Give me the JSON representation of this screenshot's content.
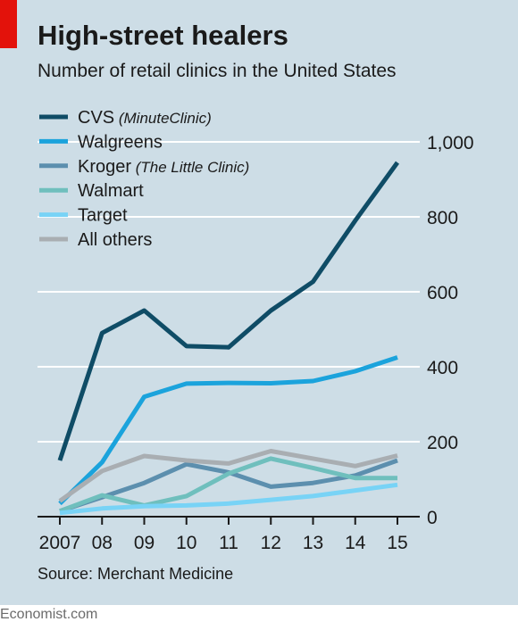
{
  "header": {
    "title": "High-street healers",
    "subtitle": "Number of retail clinics in the United States"
  },
  "footer": {
    "source": "Source: Merchant Medicine",
    "brand": "Economist.com"
  },
  "colors": {
    "background": "#cddde6",
    "accent": "#e3120b",
    "grid": "#ffffff",
    "axis": "#1a1a1a"
  },
  "chart_data": {
    "type": "line",
    "title": "High-street healers",
    "subtitle": "Number of retail clinics in the United States",
    "xlabel": "",
    "ylabel": "",
    "x": [
      2007,
      2008,
      2009,
      2010,
      2011,
      2012,
      2013,
      2014,
      2015
    ],
    "x_tick_labels": [
      "2007",
      "08",
      "09",
      "10",
      "11",
      "12",
      "13",
      "14",
      "15"
    ],
    "ylim": [
      0,
      1000
    ],
    "y_ticks": [
      0,
      200,
      400,
      600,
      800,
      1000
    ],
    "y_tick_labels": [
      "0",
      "200",
      "400",
      "600",
      "800",
      "1,000"
    ],
    "y_axis_side": "right",
    "grid": true,
    "legend_position": "top-left",
    "series": [
      {
        "name": "CVS",
        "note": "(MinuteClinic)",
        "color": "#0f4c66",
        "values": [
          150,
          490,
          550,
          455,
          452,
          550,
          627,
          790,
          945
        ]
      },
      {
        "name": "Walgreens",
        "note": "",
        "color": "#1ba3dc",
        "values": [
          35,
          145,
          320,
          355,
          357,
          356,
          362,
          388,
          425
        ]
      },
      {
        "name": "Kroger",
        "note": "(The Little Clinic)",
        "color": "#5c8fae",
        "values": [
          15,
          52,
          90,
          140,
          118,
          80,
          90,
          110,
          150
        ]
      },
      {
        "name": "Walmart",
        "note": "",
        "color": "#6fbfbd",
        "values": [
          15,
          57,
          30,
          55,
          115,
          155,
          130,
          103,
          103
        ]
      },
      {
        "name": "Target",
        "note": "",
        "color": "#78d3f6",
        "values": [
          10,
          22,
          28,
          30,
          35,
          45,
          55,
          70,
          85
        ]
      },
      {
        "name": "All others",
        "note": "",
        "color": "#a9aeb2",
        "values": [
          42,
          122,
          162,
          150,
          142,
          175,
          155,
          135,
          163
        ]
      }
    ]
  }
}
